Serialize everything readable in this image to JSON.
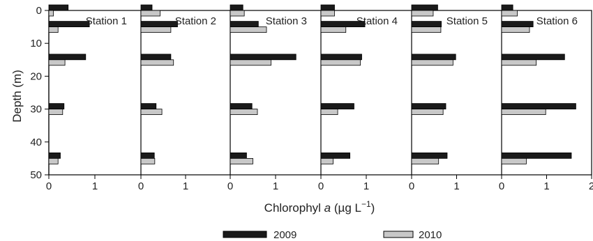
{
  "chart_data": {
    "type": "bar",
    "orientation": "horizontal",
    "xlabel_prefix": "Chlorophyl ",
    "xlabel_italic": "a",
    "xlabel_unit": " (µg L",
    "xlabel_sup": "−1",
    "xlabel_close": ")",
    "ylabel": "Depth (m)",
    "ylim": [
      0,
      50
    ],
    "yticks": [
      0,
      10,
      20,
      30,
      40,
      50
    ],
    "xlim": [
      0,
      2
    ],
    "xticks": [
      0,
      1,
      2
    ],
    "depths": [
      0,
      5,
      15,
      30,
      45
    ],
    "legend": [
      {
        "name": "2009",
        "color": "#1a1a1a"
      },
      {
        "name": "2010",
        "color": "#c8c8c8"
      }
    ],
    "panels": [
      {
        "title": "Station 1",
        "y2009": [
          0.42,
          0.88,
          0.8,
          0.33,
          0.25
        ],
        "y2010": [
          0.1,
          0.2,
          0.35,
          0.3,
          0.2
        ]
      },
      {
        "title": "Station 2",
        "y2009": [
          0.25,
          0.82,
          0.67,
          0.34,
          0.3
        ],
        "y2010": [
          0.43,
          0.67,
          0.73,
          0.47,
          0.31
        ]
      },
      {
        "title": "Station 3",
        "y2009": [
          0.28,
          0.62,
          1.45,
          0.48,
          0.36
        ],
        "y2010": [
          0.31,
          0.8,
          0.9,
          0.6,
          0.5
        ]
      },
      {
        "title": "Station 4",
        "y2009": [
          0.3,
          0.97,
          0.9,
          0.73,
          0.64
        ],
        "y2010": [
          0.3,
          0.55,
          0.87,
          0.37,
          0.27
        ]
      },
      {
        "title": "Station 5",
        "y2009": [
          0.58,
          0.66,
          0.98,
          0.76,
          0.79
        ],
        "y2010": [
          0.48,
          0.65,
          0.92,
          0.7,
          0.6
        ]
      },
      {
        "title": "Station 6",
        "y2009": [
          0.25,
          0.7,
          1.4,
          1.65,
          1.55
        ],
        "y2010": [
          0.35,
          0.62,
          0.77,
          0.98,
          0.55
        ]
      }
    ]
  }
}
